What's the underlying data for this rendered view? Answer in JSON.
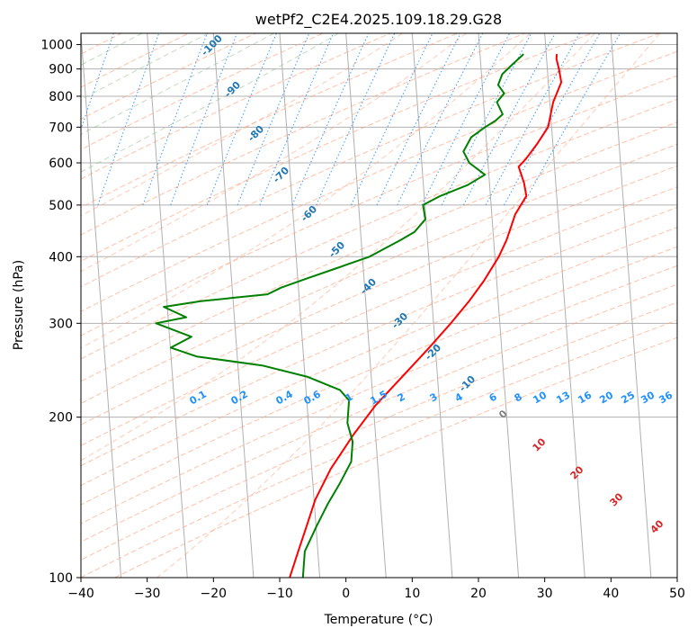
{
  "chart_data": {
    "type": "line",
    "subtype": "skew-t log-p",
    "title": "wetPf2_C2E4.2025.109.18.29.G28",
    "xlabel": "Temperature (°C)",
    "ylabel": "Pressure (hPa)",
    "xlim": [
      -40,
      50
    ],
    "ylim": [
      1050,
      100
    ],
    "y_scale": "log",
    "grid": true,
    "x_ticks": [
      -40,
      -30,
      -20,
      -10,
      0,
      10,
      20,
      30,
      40,
      50
    ],
    "y_ticks": [
      100,
      200,
      300,
      400,
      500,
      600,
      700,
      800,
      900,
      1000
    ],
    "series": [
      {
        "key": "temperature",
        "color": "#ff0000",
        "points": [
          [
            26.0,
            960
          ],
          [
            26.0,
            940
          ],
          [
            26.5,
            900
          ],
          [
            27.0,
            850
          ],
          [
            26.0,
            780
          ],
          [
            25.5,
            700
          ],
          [
            24.0,
            650
          ],
          [
            22.5,
            610
          ],
          [
            21.5,
            590
          ],
          [
            22.5,
            550
          ],
          [
            23.0,
            520
          ],
          [
            21.5,
            480
          ],
          [
            20.5,
            430
          ],
          [
            19.5,
            400
          ],
          [
            17.5,
            360
          ],
          [
            15.5,
            330
          ],
          [
            13.0,
            300
          ],
          [
            10.0,
            270
          ],
          [
            6.5,
            240
          ],
          [
            2.5,
            210
          ],
          [
            -0.5,
            185
          ],
          [
            -3.5,
            160
          ],
          [
            -5.5,
            140
          ],
          [
            -6.5,
            125
          ],
          [
            -7.5,
            112
          ],
          [
            -8.5,
            100
          ]
        ]
      },
      {
        "key": "dewpoint",
        "color": "#008000",
        "points": [
          [
            21.0,
            960
          ],
          [
            19.5,
            920
          ],
          [
            18.0,
            880
          ],
          [
            17.5,
            840
          ],
          [
            18.5,
            810
          ],
          [
            17.5,
            780
          ],
          [
            18.5,
            740
          ],
          [
            17.5,
            720
          ],
          [
            16.0,
            700
          ],
          [
            14.0,
            670
          ],
          [
            13.0,
            630
          ],
          [
            14.0,
            600
          ],
          [
            16.5,
            570
          ],
          [
            14.0,
            545
          ],
          [
            10.0,
            520
          ],
          [
            7.5,
            500
          ],
          [
            8.0,
            470
          ],
          [
            6.5,
            445
          ],
          [
            4.5,
            430
          ],
          [
            0.0,
            400
          ],
          [
            -5.0,
            380
          ],
          [
            -9.0,
            365
          ],
          [
            -13.0,
            350
          ],
          [
            -15.0,
            340
          ],
          [
            -20.0,
            335
          ],
          [
            -25.0,
            330
          ],
          [
            -30.5,
            322
          ],
          [
            -27.0,
            308
          ],
          [
            -31.5,
            300
          ],
          [
            -26.0,
            283
          ],
          [
            -29.0,
            270
          ],
          [
            -25.0,
            260
          ],
          [
            -15.0,
            250
          ],
          [
            -8.0,
            238
          ],
          [
            -3.0,
            225
          ],
          [
            -1.5,
            215
          ],
          [
            -1.5,
            195
          ],
          [
            -0.5,
            180
          ],
          [
            -0.5,
            165
          ],
          [
            -2.0,
            150
          ],
          [
            -3.5,
            138
          ],
          [
            -5.0,
            125
          ],
          [
            -6.5,
            112
          ],
          [
            -6.5,
            100
          ]
        ]
      }
    ],
    "reference_lines": {
      "dry_adiabats_K": [
        230,
        240,
        250,
        260,
        270,
        280,
        290,
        300,
        310,
        320,
        330,
        340,
        350,
        360,
        370,
        380,
        390,
        400,
        410,
        420,
        430,
        440,
        450,
        460
      ],
      "moist_adiabats_C": [
        -100,
        -90,
        -80,
        -70,
        -60,
        -50,
        -40,
        -30,
        -20,
        -10,
        0,
        10,
        20,
        30,
        40
      ],
      "mixing_ratios_gkg": [
        "0.1",
        "0.2",
        "0.4",
        "0.6",
        "1",
        "1.5",
        "2",
        "3",
        "4",
        "6",
        "8",
        "10",
        "13",
        "16",
        "20",
        "25",
        "30",
        "36"
      ]
    },
    "moist_adiabat_labels": [
      "-100",
      "-90",
      "-80",
      "-70",
      "-60",
      "-50",
      "-40",
      "-30",
      "-20",
      "-10",
      "0",
      "10",
      "20",
      "30",
      "40"
    ],
    "colors": {
      "dry_adiabat": "#ffa07a",
      "moist_adiabat_cold": "#8fbc8f",
      "moist_adiabat_warm": "#ffa07a",
      "mixing_ratio": "#1e90ff",
      "cold_label": "#1f77b4",
      "warm_label": "#d62728",
      "zero_label": "#808080",
      "iso_grid": "#b0b0b0"
    }
  }
}
